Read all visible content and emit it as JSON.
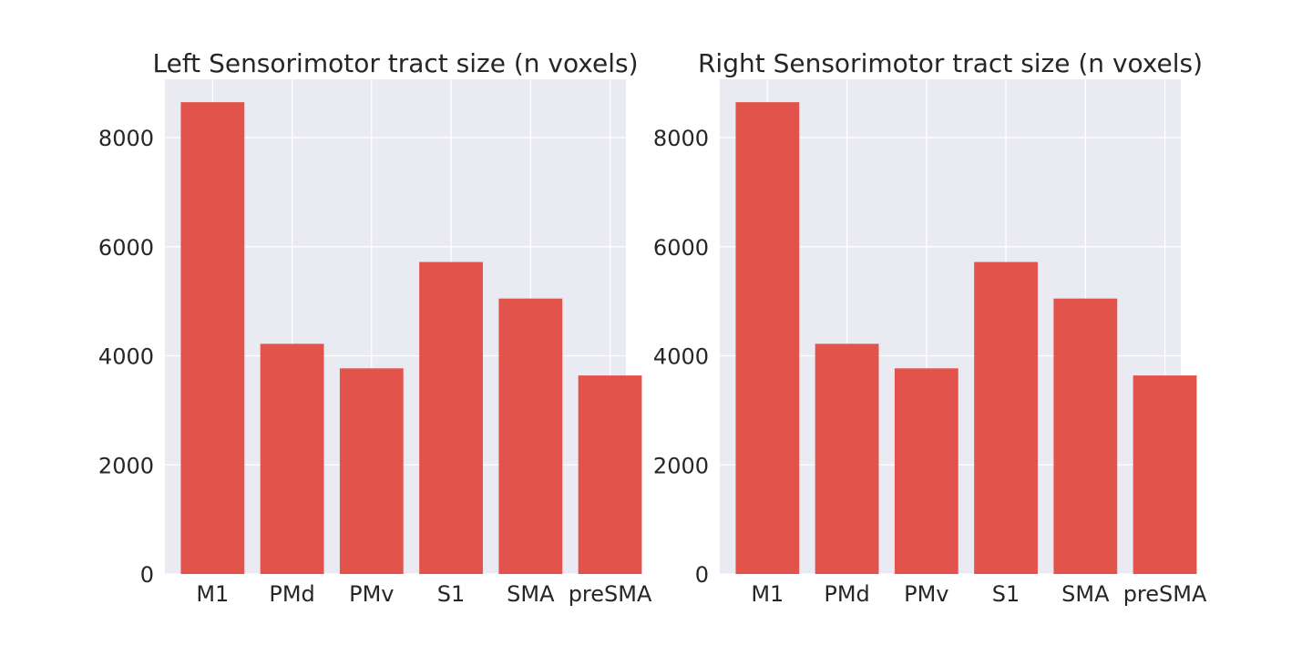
{
  "chart_data": [
    {
      "type": "bar",
      "title": "Left Sensorimotor tract size (n voxels)",
      "xlabel": "",
      "ylabel": "",
      "categories": [
        "M1",
        "PMd",
        "PMv",
        "S1",
        "SMA",
        "preSMA"
      ],
      "values": [
        8650,
        4220,
        3770,
        5720,
        5050,
        3640
      ],
      "ylim": [
        0,
        9070
      ],
      "yticks": [
        0,
        2000,
        4000,
        6000,
        8000
      ],
      "grid": true,
      "bar_color": "#e2534b",
      "background_color": "#eaeaf2"
    },
    {
      "type": "bar",
      "title": "Right Sensorimotor tract size (n voxels)",
      "xlabel": "",
      "ylabel": "",
      "categories": [
        "M1",
        "PMd",
        "PMv",
        "S1",
        "SMA",
        "preSMA"
      ],
      "values": [
        8650,
        4220,
        3770,
        5720,
        5050,
        3640
      ],
      "ylim": [
        0,
        9070
      ],
      "yticks": [
        0,
        2000,
        4000,
        6000,
        8000
      ],
      "grid": true,
      "bar_color": "#e2534b",
      "background_color": "#eaeaf2"
    }
  ]
}
